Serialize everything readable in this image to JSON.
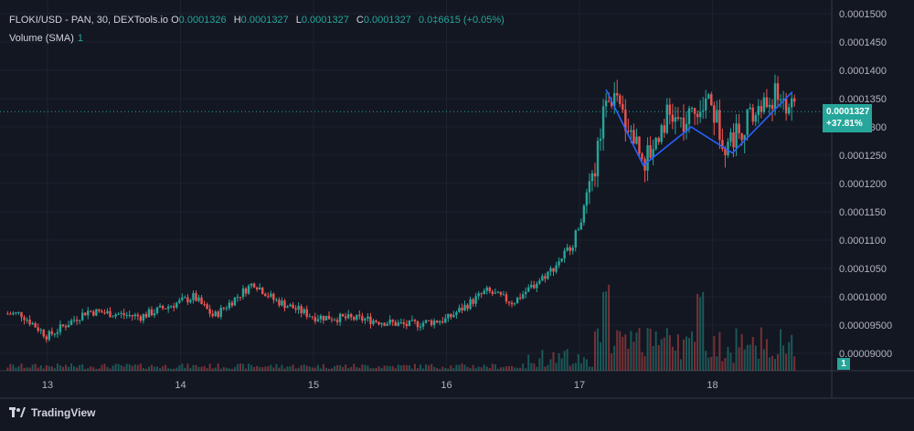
{
  "legend": {
    "symbol": "FLOKI/USD - PAN, 30, DEXTools.io",
    "open_label": "O",
    "open": "0.0001326",
    "high_label": "H",
    "high": "0.0001327",
    "low_label": "L",
    "low": "0.0001327",
    "close_label": "C",
    "close": "0.0001327",
    "change": "0.0‡6615 (+0.05%)",
    "volume_label": "Volume (SMA)",
    "volume_value": "1"
  },
  "price_tag": {
    "price": "0.0001327",
    "change_pct": "+37.81%"
  },
  "volume_tag": "1",
  "brand": "TradingView",
  "colors": {
    "background": "#131722",
    "up": "#26a69a",
    "down": "#ef5350",
    "pattern": "#2962ff"
  },
  "chart_data": {
    "type": "candlestick",
    "y_ticks": [
      "0.0001500",
      "0.0001450",
      "0.0001400",
      "0.0001350",
      "0.0001300",
      "0.0001250",
      "0.0001200",
      "0.0001150",
      "0.0001100",
      "0.0001050",
      "0.0001000",
      "0.00009500",
      "0.00009000"
    ],
    "ylim": [
      8.9e-05,
      0.00015
    ],
    "x_ticks": [
      "13",
      "14",
      "15",
      "16",
      "17",
      "18"
    ],
    "current_price": 0.0001327,
    "series": [
      {
        "x": 12.8,
        "close": 9.7e-05
      },
      {
        "x": 13.0,
        "close": 9.3e-05
      },
      {
        "x": 13.3,
        "close": 9.75e-05
      },
      {
        "x": 13.7,
        "close": 9.65e-05
      },
      {
        "x": 14.1,
        "close": 0.0001
      },
      {
        "x": 14.25,
        "close": 9.65e-05
      },
      {
        "x": 14.55,
        "close": 0.0001025
      },
      {
        "x": 14.7,
        "close": 9.95e-05
      },
      {
        "x": 15.0,
        "close": 9.65e-05
      },
      {
        "x": 15.4,
        "close": 9.6e-05
      },
      {
        "x": 15.7,
        "close": 9.5e-05
      },
      {
        "x": 16.0,
        "close": 9.6e-05
      },
      {
        "x": 16.3,
        "close": 0.000101
      },
      {
        "x": 16.5,
        "close": 9.9e-05
      },
      {
        "x": 16.8,
        "close": 0.000105
      },
      {
        "x": 16.95,
        "close": 0.0001095
      },
      {
        "x": 17.1,
        "close": 0.00012
      },
      {
        "x": 17.2,
        "close": 0.000137
      },
      {
        "x": 17.35,
        "close": 0.000131
      },
      {
        "x": 17.5,
        "close": 0.000124
      },
      {
        "x": 17.65,
        "close": 0.000132
      },
      {
        "x": 17.8,
        "close": 0.00013
      },
      {
        "x": 17.95,
        "close": 0.000136
      },
      {
        "x": 18.1,
        "close": 0.000127
      },
      {
        "x": 18.3,
        "close": 0.000132
      },
      {
        "x": 18.5,
        "close": 0.000136
      },
      {
        "x": 18.6,
        "close": 0.0001327
      }
    ],
    "pattern": [
      {
        "x": 17.2,
        "y": 0.0001366
      },
      {
        "x": 17.48,
        "y": 0.0001232
      },
      {
        "x": 17.84,
        "y": 0.00013
      },
      {
        "x": 18.15,
        "y": 0.0001254
      },
      {
        "x": 18.6,
        "y": 0.0001362
      }
    ]
  }
}
